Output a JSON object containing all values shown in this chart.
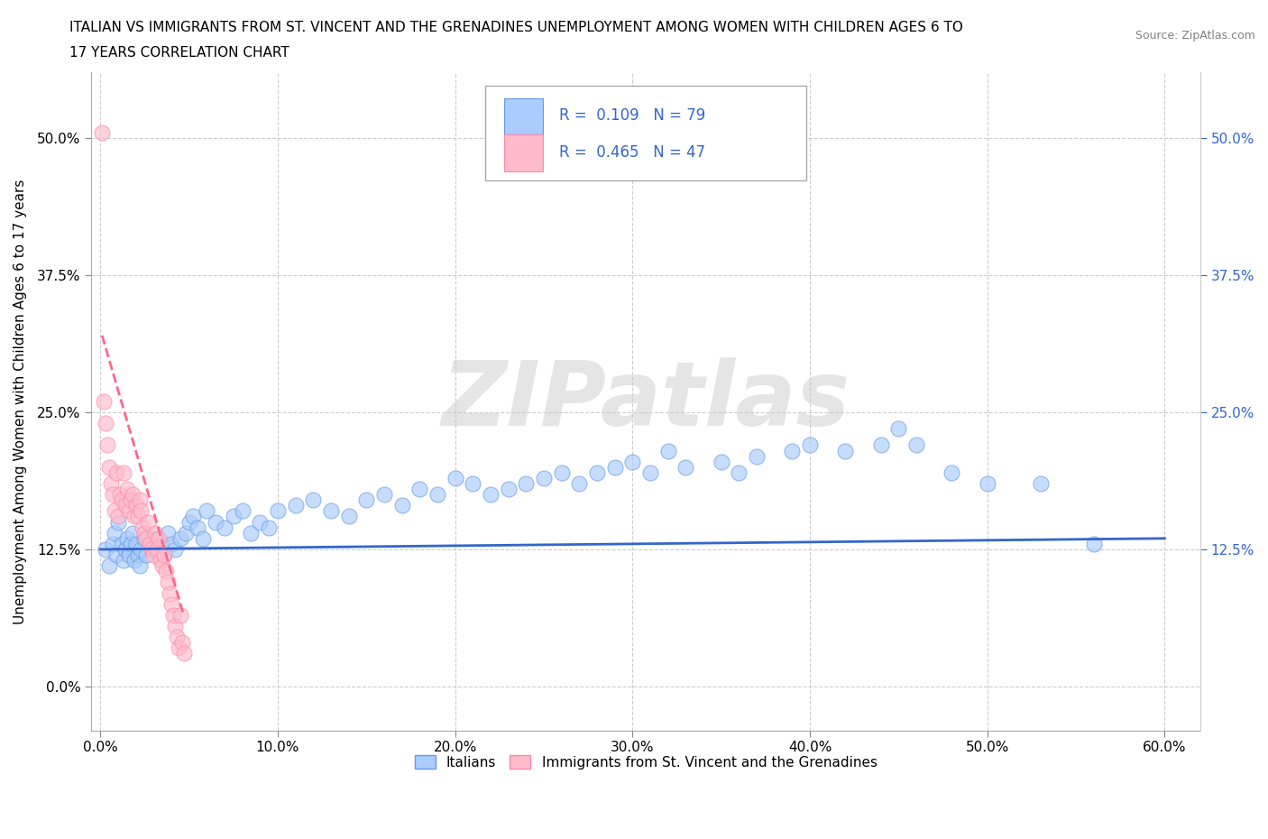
{
  "title_line1": "ITALIAN VS IMMIGRANTS FROM ST. VINCENT AND THE GRENADINES UNEMPLOYMENT AMONG WOMEN WITH CHILDREN AGES 6 TO",
  "title_line2": "17 YEARS CORRELATION CHART",
  "source_text": "Source: ZipAtlas.com",
  "ylabel": "Unemployment Among Women with Children Ages 6 to 17 years",
  "xlim": [
    -0.005,
    0.62
  ],
  "ylim": [
    -0.04,
    0.56
  ],
  "xtick_vals": [
    0.0,
    0.1,
    0.2,
    0.3,
    0.4,
    0.5,
    0.6
  ],
  "xtick_labels": [
    "0.0%",
    "10.0%",
    "20.0%",
    "30.0%",
    "40.0%",
    "50.0%",
    "60.0%"
  ],
  "ytick_vals": [
    0.0,
    0.125,
    0.25,
    0.375,
    0.5
  ],
  "ytick_labels": [
    "0.0%",
    "12.5%",
    "25.0%",
    "37.5%",
    "50.0%"
  ],
  "right_ytick_vals": [
    0.125,
    0.25,
    0.375,
    0.5
  ],
  "right_ytick_labels": [
    "12.5%",
    "25.0%",
    "37.5%",
    "50.0%"
  ],
  "italian_color": "#aaccff",
  "italian_edge": "#6699dd",
  "svg_color": "#ffbbcc",
  "svg_edge": "#ff88aa",
  "trend_blue_color": "#3366cc",
  "trend_pink_color": "#ff6688",
  "trend_pink_dashed": true,
  "R_italian": 0.109,
  "N_italian": 79,
  "R_svg": 0.465,
  "N_svg": 47,
  "watermark": "ZIPatlas",
  "legend_label_italian": "Italians",
  "legend_label_svg": "Immigrants from St. Vincent and the Grenadines",
  "blue_label_color": "#3366cc",
  "black_label_color": "#111111",
  "italian_x": [
    0.003,
    0.005,
    0.007,
    0.008,
    0.009,
    0.01,
    0.012,
    0.013,
    0.014,
    0.015,
    0.016,
    0.017,
    0.018,
    0.019,
    0.02,
    0.021,
    0.022,
    0.023,
    0.025,
    0.026,
    0.028,
    0.03,
    0.032,
    0.034,
    0.036,
    0.038,
    0.04,
    0.042,
    0.045,
    0.048,
    0.05,
    0.052,
    0.055,
    0.058,
    0.06,
    0.065,
    0.07,
    0.075,
    0.08,
    0.085,
    0.09,
    0.095,
    0.1,
    0.11,
    0.12,
    0.13,
    0.14,
    0.15,
    0.16,
    0.17,
    0.18,
    0.19,
    0.2,
    0.21,
    0.22,
    0.23,
    0.24,
    0.25,
    0.26,
    0.27,
    0.28,
    0.29,
    0.3,
    0.31,
    0.32,
    0.33,
    0.35,
    0.36,
    0.37,
    0.39,
    0.4,
    0.42,
    0.44,
    0.45,
    0.46,
    0.48,
    0.5,
    0.53,
    0.56
  ],
  "italian_y": [
    0.125,
    0.11,
    0.13,
    0.14,
    0.12,
    0.15,
    0.13,
    0.115,
    0.125,
    0.135,
    0.12,
    0.13,
    0.14,
    0.115,
    0.13,
    0.12,
    0.11,
    0.125,
    0.135,
    0.12,
    0.13,
    0.125,
    0.135,
    0.13,
    0.12,
    0.14,
    0.13,
    0.125,
    0.135,
    0.14,
    0.15,
    0.155,
    0.145,
    0.135,
    0.16,
    0.15,
    0.145,
    0.155,
    0.16,
    0.14,
    0.15,
    0.145,
    0.16,
    0.165,
    0.17,
    0.16,
    0.155,
    0.17,
    0.175,
    0.165,
    0.18,
    0.175,
    0.19,
    0.185,
    0.175,
    0.18,
    0.185,
    0.19,
    0.195,
    0.185,
    0.195,
    0.2,
    0.205,
    0.195,
    0.215,
    0.2,
    0.205,
    0.195,
    0.21,
    0.215,
    0.22,
    0.215,
    0.22,
    0.235,
    0.22,
    0.195,
    0.185,
    0.185,
    0.13
  ],
  "svg_x": [
    0.001,
    0.002,
    0.003,
    0.004,
    0.005,
    0.006,
    0.007,
    0.008,
    0.009,
    0.01,
    0.011,
    0.012,
    0.013,
    0.014,
    0.015,
    0.016,
    0.017,
    0.018,
    0.019,
    0.02,
    0.021,
    0.022,
    0.023,
    0.024,
    0.025,
    0.026,
    0.027,
    0.028,
    0.029,
    0.03,
    0.031,
    0.032,
    0.033,
    0.034,
    0.035,
    0.036,
    0.037,
    0.038,
    0.039,
    0.04,
    0.041,
    0.042,
    0.043,
    0.044,
    0.045,
    0.046,
    0.047
  ],
  "svg_y": [
    0.505,
    0.26,
    0.24,
    0.22,
    0.2,
    0.185,
    0.175,
    0.16,
    0.195,
    0.155,
    0.175,
    0.17,
    0.195,
    0.165,
    0.18,
    0.16,
    0.17,
    0.175,
    0.155,
    0.165,
    0.155,
    0.17,
    0.16,
    0.145,
    0.14,
    0.135,
    0.15,
    0.13,
    0.125,
    0.12,
    0.14,
    0.125,
    0.135,
    0.115,
    0.11,
    0.12,
    0.105,
    0.095,
    0.085,
    0.075,
    0.065,
    0.055,
    0.045,
    0.035,
    0.065,
    0.04,
    0.03
  ],
  "blue_trend_x0": 0.0,
  "blue_trend_x1": 0.6,
  "blue_trend_y0": 0.125,
  "blue_trend_y1": 0.135,
  "pink_trend_x0": 0.001,
  "pink_trend_x1": 0.047,
  "pink_trend_y0": 0.32,
  "pink_trend_y1": 0.065
}
